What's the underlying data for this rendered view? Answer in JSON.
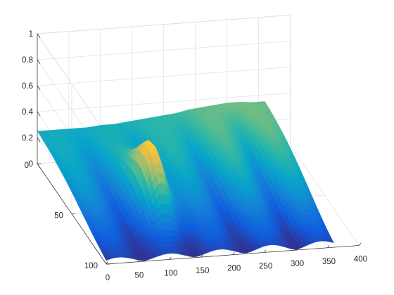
{
  "chart_data": {
    "type": "surface",
    "title": "",
    "xlabel": "",
    "ylabel": "",
    "zlabel": "",
    "grid": true,
    "colormap": "parula",
    "colormap_stops": [
      "#352a87",
      "#0f5cdd",
      "#1481d6",
      "#06a4ca",
      "#2eb7a4",
      "#87bf77",
      "#d1bb59",
      "#fec832",
      "#f9fb0e"
    ],
    "xlim": [
      0,
      400
    ],
    "ylim": [
      0,
      100
    ],
    "zlim": [
      0,
      1
    ],
    "x_ticks": [
      0,
      50,
      100,
      150,
      200,
      250,
      300,
      350,
      400
    ],
    "y_ticks": [
      0,
      50,
      100
    ],
    "z_ticks": [
      0,
      0.2,
      0.4,
      0.6,
      0.8,
      1
    ],
    "x_tick_labels": [
      "0",
      "50",
      "100",
      "150",
      "200",
      "250",
      "300",
      "350",
      "400"
    ],
    "y_tick_labels": [
      "0",
      "50",
      "100"
    ],
    "z_tick_labels": [
      "0",
      "0.2",
      "0.4",
      "0.6",
      "0.8",
      "1"
    ],
    "x_range_data": [
      0,
      360
    ],
    "y_range_data": [
      0,
      100
    ],
    "surface_profile_front": {
      "x": [
        0,
        20,
        40,
        60,
        80,
        100,
        120,
        140,
        160,
        180,
        200,
        220,
        240,
        260,
        280,
        300,
        320,
        340,
        360
      ],
      "z_at_y0": [
        0.25,
        0.25,
        0.25,
        0.25,
        0.25,
        0.26,
        0.26,
        0.27,
        0.28,
        0.29,
        0.3,
        0.31,
        0.33,
        0.34,
        0.35,
        0.36,
        0.36,
        0.35,
        0.35
      ],
      "peak": {
        "x": 122,
        "y": 60,
        "z": 0.6
      }
    }
  }
}
